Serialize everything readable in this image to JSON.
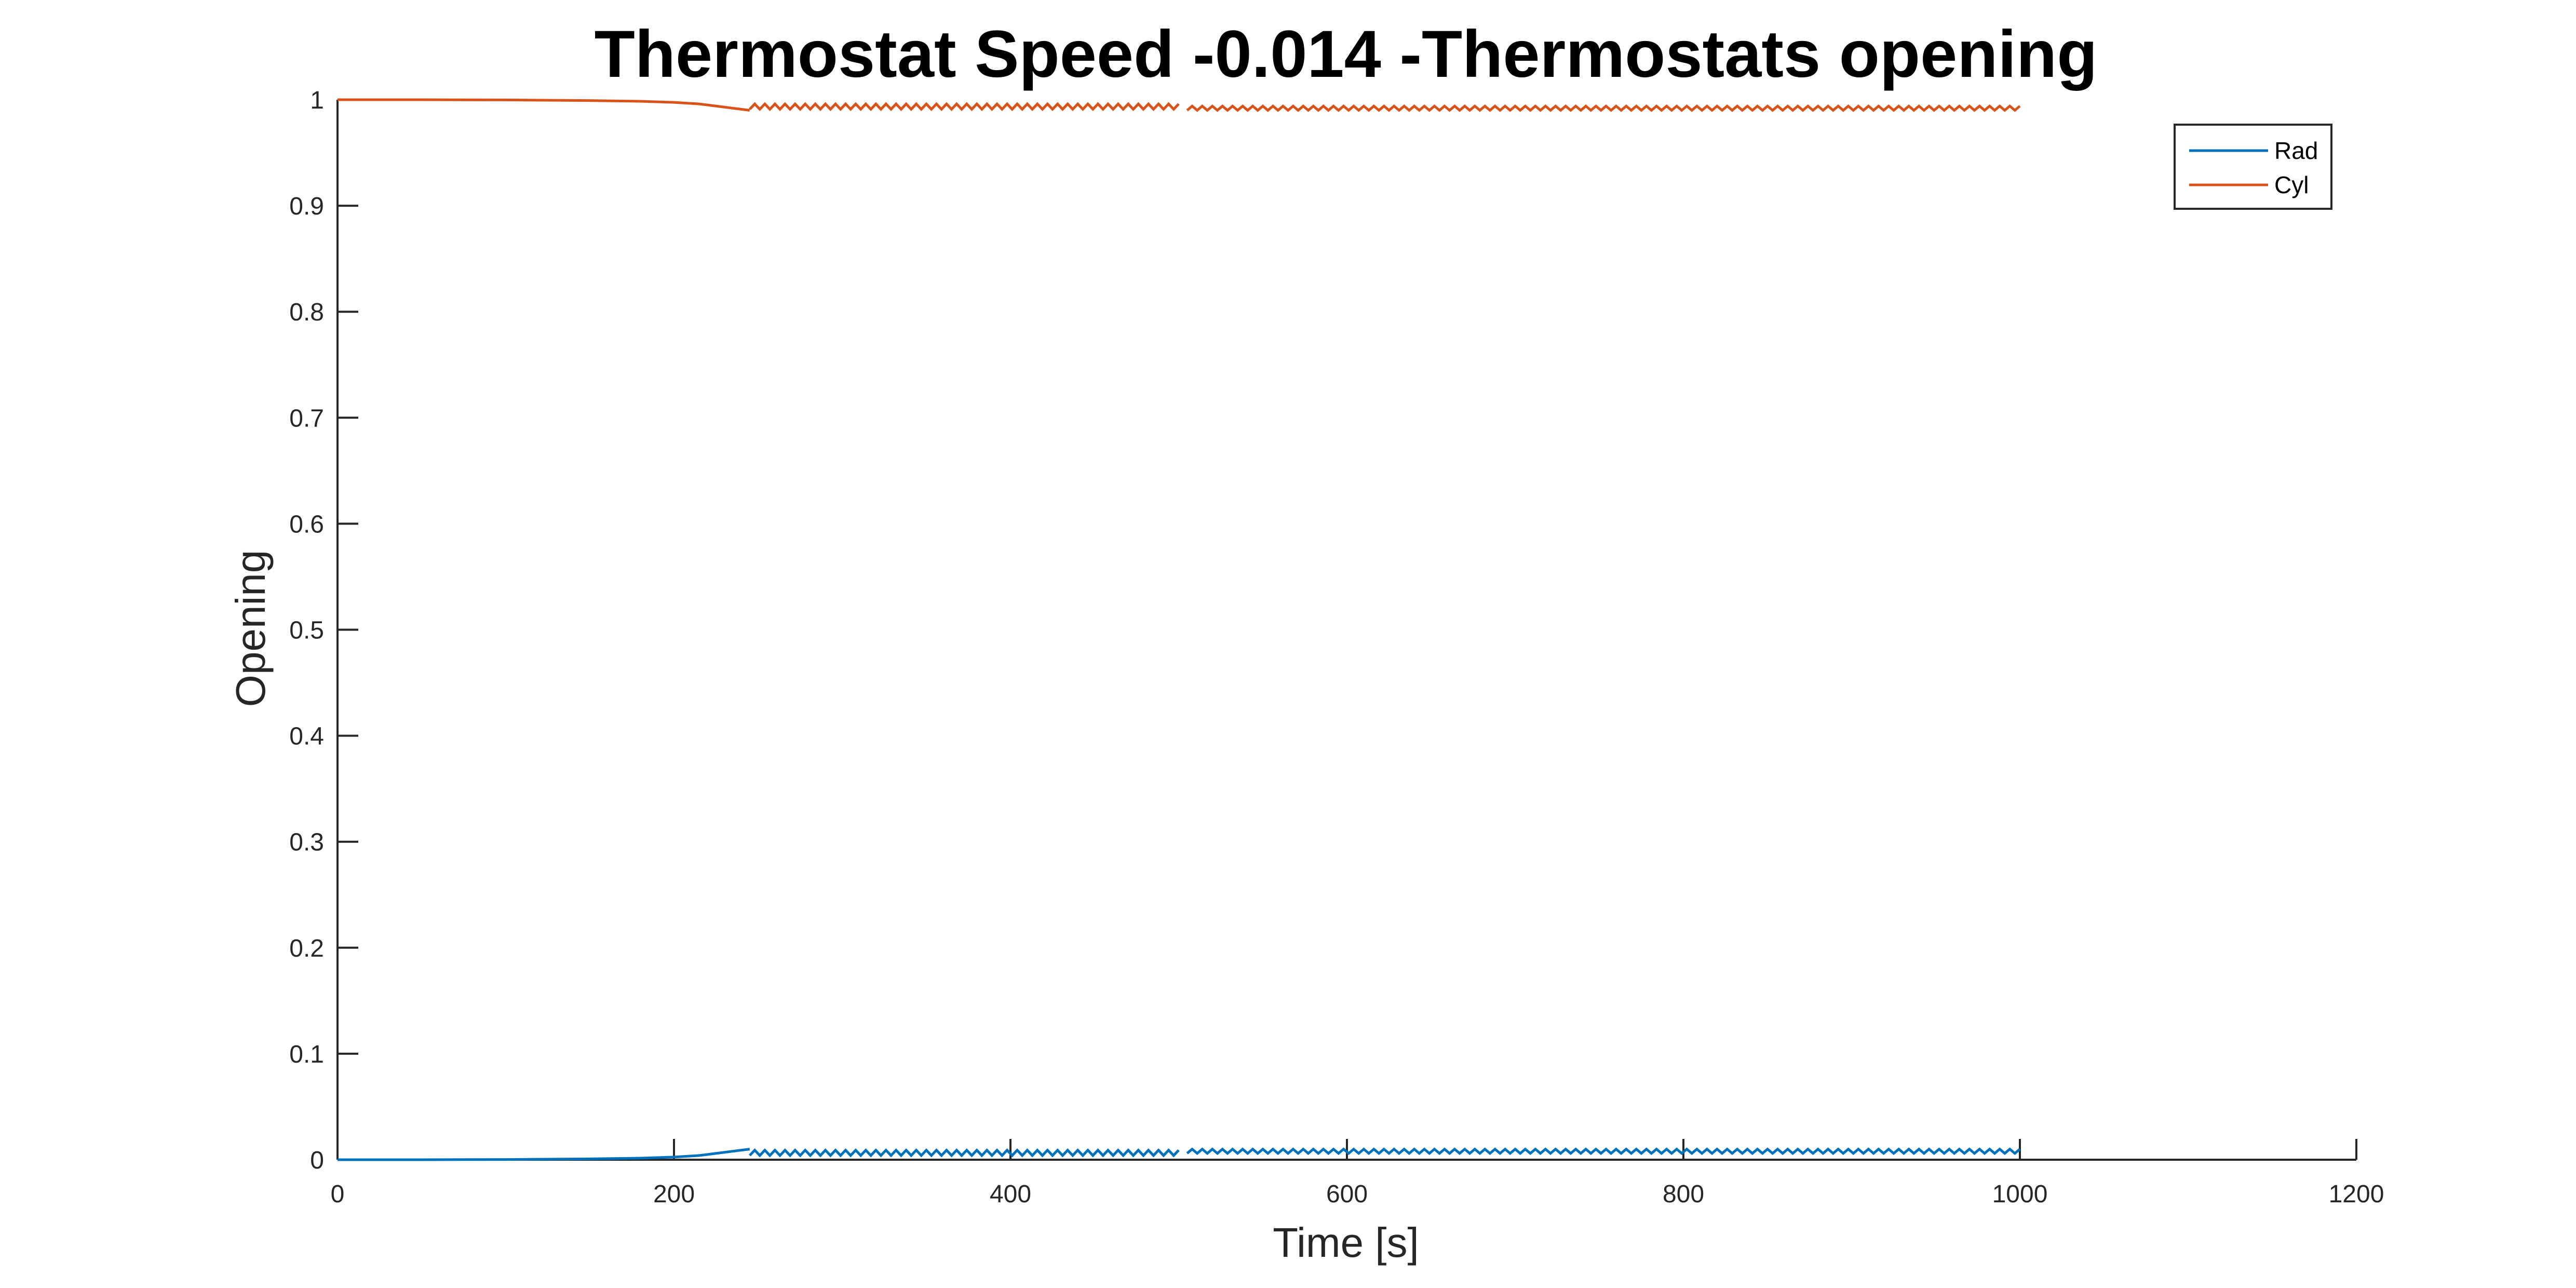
{
  "chart_data": {
    "type": "line",
    "title": "Thermostat Speed -0.014 -Thermostats opening",
    "xlabel": "Time [s]",
    "ylabel": "Opening",
    "xlim": [
      0,
      1200
    ],
    "ylim": [
      0,
      1
    ],
    "x_ticks": [
      0,
      200,
      400,
      600,
      800,
      1000,
      1200
    ],
    "x_tick_labels": [
      "0",
      "200",
      "400",
      "600",
      "800",
      "1000",
      "1200"
    ],
    "y_ticks": [
      0,
      0.1,
      0.2,
      0.3,
      0.4,
      0.5,
      0.6,
      0.7,
      0.8,
      0.9,
      1
    ],
    "y_tick_labels": [
      "0",
      "0.1",
      "0.2",
      "0.3",
      "0.4",
      "0.5",
      "0.6",
      "0.7",
      "0.8",
      "0.9",
      "1"
    ],
    "grid": false,
    "box": false,
    "legend_position": "top-right",
    "series": [
      {
        "name": "Rad",
        "color": "#0072BD",
        "x": [
          0,
          50,
          100,
          150,
          180,
          200,
          215,
          230,
          240,
          245,
          250,
          300,
          350,
          400,
          450,
          500,
          505,
          510,
          600,
          700,
          800,
          900,
          1000
        ],
        "y": [
          0,
          0,
          0.0002,
          0.0008,
          0.0015,
          0.0025,
          0.004,
          0.007,
          0.009,
          0.01,
          0.006,
          0.006,
          0.006,
          0.006,
          0.006,
          0.006,
          0.004,
          0.008,
          0.008,
          0.008,
          0.008,
          0.008,
          0.008
        ],
        "oscillation": [
          {
            "from": 245,
            "to": 500,
            "low": 0.004,
            "high": 0.009
          },
          {
            "from": 505,
            "to": 1000,
            "low": 0.006,
            "high": 0.01
          }
        ]
      },
      {
        "name": "Cyl",
        "color": "#D95319",
        "x": [
          0,
          50,
          100,
          150,
          180,
          200,
          215,
          230,
          240,
          245,
          250,
          300,
          350,
          400,
          450,
          500,
          505,
          510,
          600,
          700,
          800,
          900,
          1000
        ],
        "y": [
          1,
          1,
          0.9998,
          0.9992,
          0.9985,
          0.9975,
          0.996,
          0.993,
          0.991,
          0.99,
          0.994,
          0.994,
          0.994,
          0.994,
          0.994,
          0.994,
          0.996,
          0.992,
          0.992,
          0.992,
          0.992,
          0.992,
          0.992
        ],
        "oscillation": [
          {
            "from": 245,
            "to": 500,
            "low": 0.991,
            "high": 0.996
          },
          {
            "from": 505,
            "to": 1000,
            "low": 0.99,
            "high": 0.994
          }
        ]
      }
    ]
  }
}
